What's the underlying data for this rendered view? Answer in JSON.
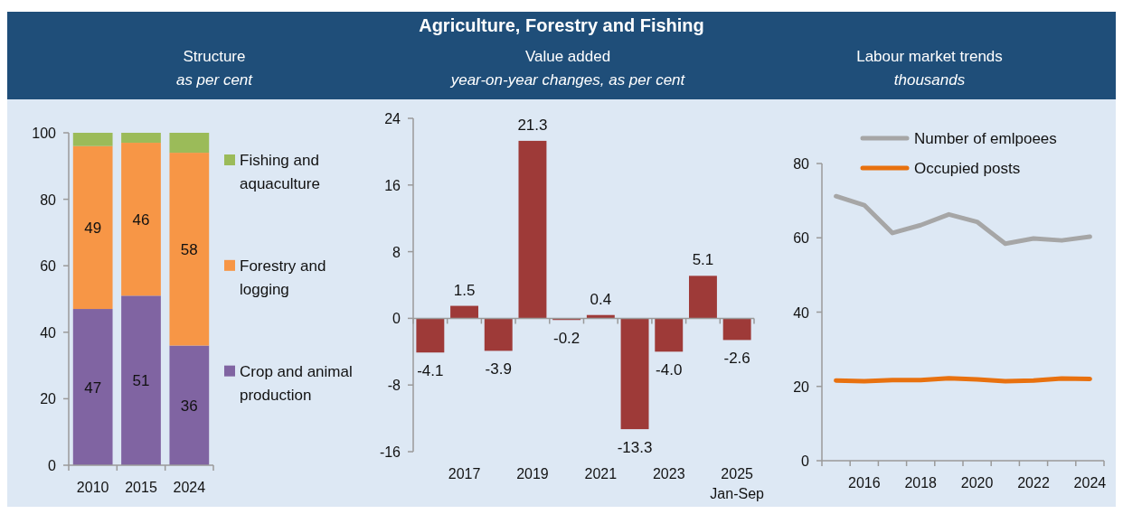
{
  "chart_data": [
    {
      "type": "other",
      "title": "Agriculture, Forestry and Fishing"
    },
    {
      "type": "bar",
      "title": "Structure",
      "subtitle": "as per cent",
      "categories": [
        "2010",
        "2015",
        "2024"
      ],
      "stacked": true,
      "legend": "right",
      "ylim": [
        0,
        100
      ],
      "yticks": [
        0,
        20,
        40,
        60,
        80,
        100
      ],
      "series": [
        {
          "name": "Crop and animal production",
          "color": "#8064a2",
          "values": [
            47,
            51,
            36
          ],
          "value_labels": [
            "47",
            "51",
            "36"
          ]
        },
        {
          "name": "Forestry and logging",
          "color": "#f79646",
          "values": [
            49,
            46,
            58
          ],
          "value_labels": [
            "49",
            "46",
            "58"
          ]
        },
        {
          "name": "Fishing and aquaculture",
          "color": "#9bbb59",
          "values": [
            4,
            3,
            6
          ]
        }
      ]
    },
    {
      "type": "bar",
      "title": "Value added",
      "subtitle": "year-on-year changes, as per cent",
      "categories": [
        null,
        "2017",
        null,
        "2019",
        null,
        "2021",
        null,
        "2023",
        null,
        "2025\nJan-Sep"
      ],
      "values": [
        -4.1,
        1.5,
        -3.9,
        21.3,
        -0.2,
        0.4,
        -13.3,
        -4.0,
        5.1,
        -2.6
      ],
      "color": "#9e3a38",
      "value_labels": [
        "-4.1",
        "1.5",
        "-3.9",
        "21.3",
        "-0.2",
        "0.4",
        "-13.3",
        "-4.0",
        "5.1",
        "-2.6"
      ],
      "ylim": [
        -16,
        24
      ],
      "yticks": [
        -16,
        -8,
        0,
        8,
        16,
        24
      ]
    },
    {
      "type": "line",
      "title": "Labour market trends",
      "subtitle": "thousands",
      "categories": [
        null,
        "2016",
        null,
        "2018",
        null,
        "2020",
        null,
        "2022",
        null,
        "2024"
      ],
      "legend": "top",
      "ylim": [
        0,
        80
      ],
      "yticks": [
        0,
        20,
        40,
        60,
        80
      ],
      "series": [
        {
          "name": "Number of emlpoees",
          "color": "#a6a6a6",
          "values": [
            71.2,
            68.8,
            61.3,
            63.4,
            66.3,
            64.3,
            58.4,
            59.8,
            59.3,
            60.3
          ]
        },
        {
          "name": "Occupied posts",
          "color": "#e8710f",
          "values": [
            21.6,
            21.4,
            21.7,
            21.7,
            22.2,
            21.9,
            21.4,
            21.6,
            22.1,
            22.0
          ]
        }
      ]
    }
  ]
}
